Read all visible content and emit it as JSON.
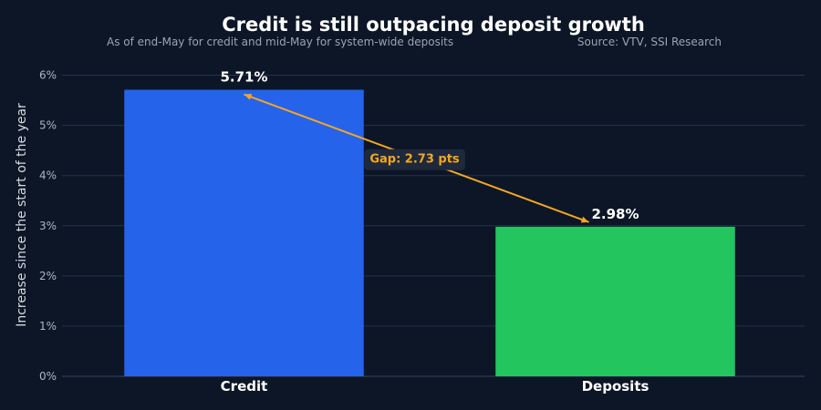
{
  "chart_data": {
    "type": "bar",
    "title": "Credit is still outpacing deposit growth",
    "subtitle": "As of end-May for credit and mid-May for system-wide deposits",
    "source": "Source: VTV, SSI Research",
    "ylabel": "Increase since the start of the year",
    "xlabel": "",
    "categories": [
      "Credit",
      "Deposits"
    ],
    "values": [
      5.71,
      2.98
    ],
    "value_labels": [
      "5.71%",
      "2.98%"
    ],
    "colors": [
      "#2563eb",
      "#22c55e"
    ],
    "ylim": [
      0,
      6.5
    ],
    "yticks": [
      0,
      1,
      2,
      3,
      4,
      5,
      6
    ],
    "ytick_labels": [
      "0%",
      "1%",
      "2%",
      "3%",
      "4%",
      "5%",
      "6%"
    ],
    "grid": true,
    "legend": "none",
    "annotation": {
      "text": "Gap: 2.73 pts",
      "from_category": "Credit",
      "to_category": "Deposits",
      "color": "#f5a623"
    }
  },
  "colors": {
    "background": "#0c1626",
    "grid": "#27324a",
    "axis": "#3a4660"
  }
}
